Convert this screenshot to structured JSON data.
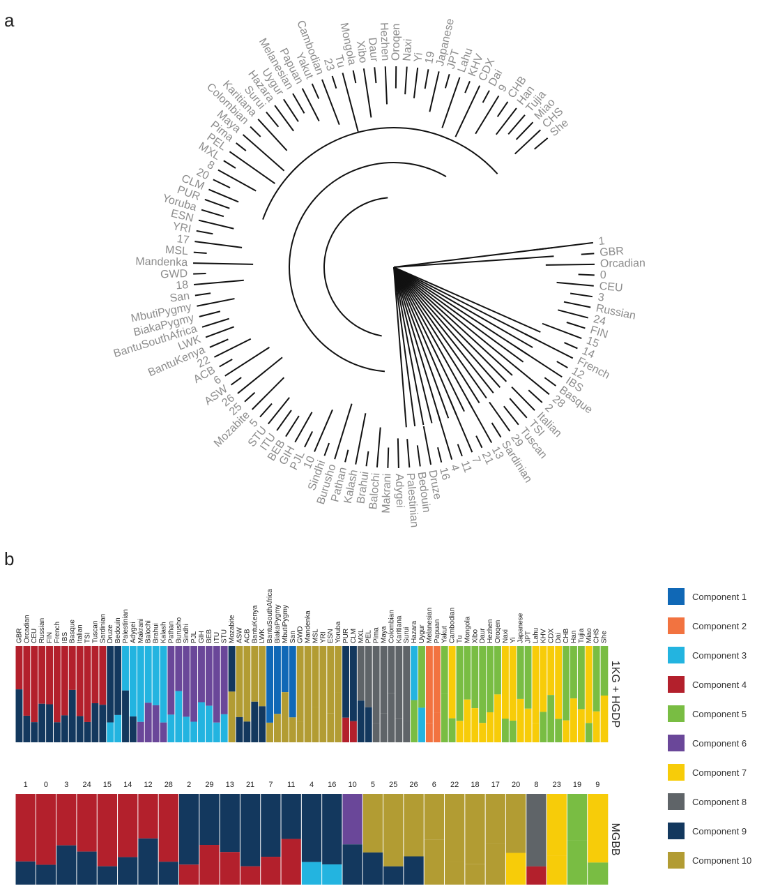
{
  "panels": {
    "a": "a",
    "b": "b"
  },
  "tree": {
    "label_color": "#8c8c8c",
    "line_color": "#111111",
    "leaves": [
      "1",
      "GBR",
      "Orcadian",
      "0",
      "CEU",
      "3",
      "Russian",
      "24",
      "FIN",
      "15",
      "14",
      "French",
      "12",
      "IBS",
      "Basque",
      "28",
      "2",
      "Italian",
      "TSI",
      "Tuscan",
      "29",
      "Sardinian",
      "13",
      "21",
      "7",
      "11",
      "4",
      "16",
      "Druze",
      "Bedouin",
      "Palestinian",
      "Adygei",
      "Makrani",
      "Balochi",
      "Brahui",
      "Kalash",
      "Pathan",
      "Burusho",
      "Sindhi",
      "10",
      "PJL",
      "GIH",
      "BEB",
      "ITU",
      "STU",
      "5",
      "Mozabite",
      "25",
      "26",
      "ASW",
      "6",
      "ACB",
      "22",
      "BantuKenya",
      "LWK",
      "BantuSouthAfrica",
      "BiakaPygmy",
      "MbutiPygmy",
      "San",
      "18",
      "GWD",
      "Mandenka",
      "MSL",
      "17",
      "YRI",
      "ESN",
      "Yoruba",
      "PUR",
      "CLM",
      "20",
      "8",
      "MXL",
      "PEL",
      "Pima",
      "Maya",
      "Colombian",
      "Karitiana",
      "Surui",
      "Hazara",
      "Uygur",
      "Melanesian",
      "Papuan",
      "Yakut",
      "Cambodian",
      "23",
      "Tu",
      "Mongola",
      "Xibo",
      "Daur",
      "Hezhen",
      "Oroqen",
      "Naxi",
      "Yi",
      "19",
      "Japanese",
      "JPT",
      "Lahu",
      "KHV",
      "CDX",
      "Dai",
      "9",
      "CHB",
      "Han",
      "Tujia",
      "Miao",
      "CHS",
      "She"
    ]
  },
  "structure": {
    "rows": [
      {
        "label": "1KG + HGDP",
        "populations": [
          "GBR",
          "Orcadian",
          "CEU",
          "Russian",
          "FIN",
          "French",
          "IBS",
          "Basque",
          "Italian",
          "TSI",
          "Tuscan",
          "Sardinian",
          "Druze",
          "Bedouin",
          "Palestinian",
          "Adygei",
          "Makrani",
          "Balochi",
          "Brahui",
          "Kalash",
          "Pathan",
          "Burusho",
          "Sindhi",
          "PJL",
          "GIH",
          "BEB",
          "ITU",
          "STU",
          "Mozabite",
          "ASW",
          "ACB",
          "BantuKenya",
          "LWK",
          "BantuSouthAfrica",
          "BiakaPygmy",
          "MbutiPygmy",
          "San",
          "GWD",
          "Mandenka",
          "MSL",
          "YRI",
          "ESN",
          "Yoruba",
          "PUR",
          "CLM",
          "MXL",
          "PEL",
          "Pima",
          "Maya",
          "Colombian",
          "Karitiana",
          "Surui",
          "Hazara",
          "Uygur",
          "Melanesian",
          "Papuan",
          "Yakut",
          "Cambodian",
          "Tu",
          "Mongola",
          "Xibo",
          "Daur",
          "Hezhen",
          "Oroqen",
          "Naxi",
          "Yi",
          "Japanese",
          "JPT",
          "Lahu",
          "KHV",
          "CDX",
          "Dai",
          "CHB",
          "Han",
          "Tujia",
          "Miao",
          "CHS",
          "She"
        ]
      },
      {
        "label": "MGBB",
        "populations": [
          "1",
          "0",
          "3",
          "24",
          "15",
          "14",
          "12",
          "28",
          "2",
          "29",
          "13",
          "21",
          "7",
          "11",
          "4",
          "16",
          "10",
          "5",
          "25",
          "26",
          "6",
          "22",
          "18",
          "17",
          "20",
          "8",
          "23",
          "19",
          "9"
        ]
      }
    ],
    "legend": [
      {
        "label": "Component 1",
        "color": "#1068b6"
      },
      {
        "label": "Component 2",
        "color": "#f27340"
      },
      {
        "label": "Component 3",
        "color": "#23b4e0"
      },
      {
        "label": "Component 4",
        "color": "#b3202c"
      },
      {
        "label": "Component 5",
        "color": "#79bd43"
      },
      {
        "label": "Component 6",
        "color": "#6a4799"
      },
      {
        "label": "Component 7",
        "color": "#f7cc09"
      },
      {
        "label": "Component 8",
        "color": "#5f6468"
      },
      {
        "label": "Component 9",
        "color": "#13385e"
      },
      {
        "label": "Component 10",
        "color": "#b29c33"
      }
    ]
  }
}
